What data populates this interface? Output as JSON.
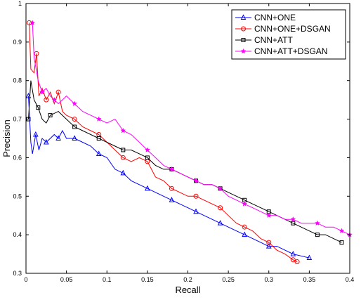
{
  "chart_data": {
    "type": "line",
    "title": "",
    "xlabel": "Recall",
    "ylabel": "Precision",
    "xlim": [
      0,
      0.4
    ],
    "ylim": [
      0.3,
      1.0
    ],
    "xticks": [
      0,
      0.05,
      0.1,
      0.15,
      0.2,
      0.25,
      0.3,
      0.35,
      0.4
    ],
    "xtick_labels": [
      "0",
      "0.05",
      "0.1",
      "0.15",
      "0.2",
      "0.25",
      "0.3",
      "0.35",
      "0.4"
    ],
    "yticks": [
      0.3,
      0.4,
      0.5,
      0.6,
      0.7,
      0.8,
      0.9,
      1.0
    ],
    "ytick_labels": [
      "0.3",
      "0.4",
      "0.5",
      "0.6",
      "0.7",
      "0.8",
      "0.9",
      "1"
    ],
    "grid": false,
    "legend_position": "top-right",
    "series": [
      {
        "name": "CNN+ONE",
        "color": "#0000ff",
        "marker": "triangle",
        "points": [
          [
            0.003,
            0.76
          ],
          [
            0.006,
            0.64
          ],
          [
            0.008,
            0.61
          ],
          [
            0.012,
            0.66
          ],
          [
            0.016,
            0.62
          ],
          [
            0.02,
            0.65
          ],
          [
            0.025,
            0.64
          ],
          [
            0.03,
            0.65
          ],
          [
            0.035,
            0.66
          ],
          [
            0.04,
            0.65
          ],
          [
            0.045,
            0.67
          ],
          [
            0.05,
            0.65
          ],
          [
            0.06,
            0.65
          ],
          [
            0.07,
            0.64
          ],
          [
            0.08,
            0.63
          ],
          [
            0.09,
            0.61
          ],
          [
            0.1,
            0.6
          ],
          [
            0.11,
            0.57
          ],
          [
            0.12,
            0.56
          ],
          [
            0.13,
            0.54
          ],
          [
            0.14,
            0.53
          ],
          [
            0.15,
            0.52
          ],
          [
            0.16,
            0.51
          ],
          [
            0.17,
            0.5
          ],
          [
            0.18,
            0.49
          ],
          [
            0.19,
            0.48
          ],
          [
            0.2,
            0.47
          ],
          [
            0.21,
            0.46
          ],
          [
            0.22,
            0.45
          ],
          [
            0.23,
            0.44
          ],
          [
            0.24,
            0.43
          ],
          [
            0.25,
            0.42
          ],
          [
            0.26,
            0.41
          ],
          [
            0.27,
            0.4
          ],
          [
            0.28,
            0.39
          ],
          [
            0.29,
            0.38
          ],
          [
            0.3,
            0.37
          ],
          [
            0.31,
            0.37
          ],
          [
            0.32,
            0.36
          ],
          [
            0.33,
            0.35
          ],
          [
            0.34,
            0.345
          ],
          [
            0.35,
            0.34
          ]
        ]
      },
      {
        "name": "CNN+ONE+DSGAN",
        "color": "#ff0000",
        "marker": "circle",
        "points": [
          [
            0.004,
            0.95
          ],
          [
            0.006,
            0.83
          ],
          [
            0.01,
            0.82
          ],
          [
            0.013,
            0.87
          ],
          [
            0.016,
            0.76
          ],
          [
            0.02,
            0.78
          ],
          [
            0.025,
            0.75
          ],
          [
            0.03,
            0.77
          ],
          [
            0.035,
            0.74
          ],
          [
            0.04,
            0.77
          ],
          [
            0.045,
            0.72
          ],
          [
            0.05,
            0.71
          ],
          [
            0.06,
            0.7
          ],
          [
            0.07,
            0.68
          ],
          [
            0.08,
            0.67
          ],
          [
            0.09,
            0.66
          ],
          [
            0.1,
            0.64
          ],
          [
            0.11,
            0.62
          ],
          [
            0.12,
            0.6
          ],
          [
            0.13,
            0.59
          ],
          [
            0.14,
            0.6
          ],
          [
            0.15,
            0.59
          ],
          [
            0.16,
            0.55
          ],
          [
            0.17,
            0.54
          ],
          [
            0.18,
            0.52
          ],
          [
            0.19,
            0.51
          ],
          [
            0.2,
            0.5
          ],
          [
            0.21,
            0.5
          ],
          [
            0.22,
            0.49
          ],
          [
            0.23,
            0.48
          ],
          [
            0.24,
            0.47
          ],
          [
            0.25,
            0.45
          ],
          [
            0.26,
            0.43
          ],
          [
            0.27,
            0.42
          ],
          [
            0.28,
            0.41
          ],
          [
            0.29,
            0.39
          ],
          [
            0.3,
            0.38
          ],
          [
            0.31,
            0.36
          ],
          [
            0.32,
            0.35
          ],
          [
            0.33,
            0.335
          ],
          [
            0.335,
            0.33
          ]
        ]
      },
      {
        "name": "CNN+ATT",
        "color": "#000000",
        "marker": "square",
        "points": [
          [
            0.003,
            0.7
          ],
          [
            0.006,
            0.8
          ],
          [
            0.01,
            0.75
          ],
          [
            0.015,
            0.73
          ],
          [
            0.02,
            0.7
          ],
          [
            0.025,
            0.69
          ],
          [
            0.03,
            0.71
          ],
          [
            0.04,
            0.72
          ],
          [
            0.05,
            0.7
          ],
          [
            0.06,
            0.68
          ],
          [
            0.07,
            0.67
          ],
          [
            0.08,
            0.66
          ],
          [
            0.09,
            0.65
          ],
          [
            0.1,
            0.64
          ],
          [
            0.11,
            0.63
          ],
          [
            0.12,
            0.62
          ],
          [
            0.13,
            0.62
          ],
          [
            0.14,
            0.61
          ],
          [
            0.15,
            0.6
          ],
          [
            0.16,
            0.58
          ],
          [
            0.17,
            0.57
          ],
          [
            0.18,
            0.57
          ],
          [
            0.19,
            0.56
          ],
          [
            0.2,
            0.55
          ],
          [
            0.21,
            0.54
          ],
          [
            0.22,
            0.53
          ],
          [
            0.23,
            0.53
          ],
          [
            0.24,
            0.52
          ],
          [
            0.25,
            0.51
          ],
          [
            0.26,
            0.5
          ],
          [
            0.27,
            0.49
          ],
          [
            0.28,
            0.48
          ],
          [
            0.29,
            0.47
          ],
          [
            0.3,
            0.46
          ],
          [
            0.31,
            0.45
          ],
          [
            0.32,
            0.44
          ],
          [
            0.33,
            0.43
          ],
          [
            0.34,
            0.42
          ],
          [
            0.35,
            0.41
          ],
          [
            0.36,
            0.4
          ],
          [
            0.37,
            0.4
          ],
          [
            0.38,
            0.39
          ],
          [
            0.39,
            0.38
          ]
        ]
      },
      {
        "name": "CNN+ATT+DSGAN",
        "color": "#ff00ff",
        "marker": "star",
        "points": [
          [
            0.008,
            0.95
          ],
          [
            0.01,
            0.86
          ],
          [
            0.015,
            0.8
          ],
          [
            0.02,
            0.77
          ],
          [
            0.025,
            0.78
          ],
          [
            0.03,
            0.76
          ],
          [
            0.035,
            0.75
          ],
          [
            0.04,
            0.74
          ],
          [
            0.05,
            0.76
          ],
          [
            0.06,
            0.74
          ],
          [
            0.07,
            0.72
          ],
          [
            0.08,
            0.71
          ],
          [
            0.09,
            0.7
          ],
          [
            0.1,
            0.69
          ],
          [
            0.11,
            0.7
          ],
          [
            0.12,
            0.67
          ],
          [
            0.13,
            0.66
          ],
          [
            0.14,
            0.64
          ],
          [
            0.15,
            0.62
          ],
          [
            0.16,
            0.6
          ],
          [
            0.17,
            0.58
          ],
          [
            0.18,
            0.57
          ],
          [
            0.19,
            0.56
          ],
          [
            0.2,
            0.55
          ],
          [
            0.21,
            0.54
          ],
          [
            0.22,
            0.53
          ],
          [
            0.23,
            0.53
          ],
          [
            0.24,
            0.52
          ],
          [
            0.25,
            0.5
          ],
          [
            0.26,
            0.49
          ],
          [
            0.27,
            0.48
          ],
          [
            0.28,
            0.47
          ],
          [
            0.29,
            0.46
          ],
          [
            0.3,
            0.45
          ],
          [
            0.31,
            0.45
          ],
          [
            0.32,
            0.44
          ],
          [
            0.33,
            0.44
          ],
          [
            0.34,
            0.43
          ],
          [
            0.35,
            0.43
          ],
          [
            0.36,
            0.43
          ],
          [
            0.37,
            0.42
          ],
          [
            0.38,
            0.42
          ],
          [
            0.39,
            0.41
          ],
          [
            0.4,
            0.4
          ]
        ]
      }
    ]
  }
}
